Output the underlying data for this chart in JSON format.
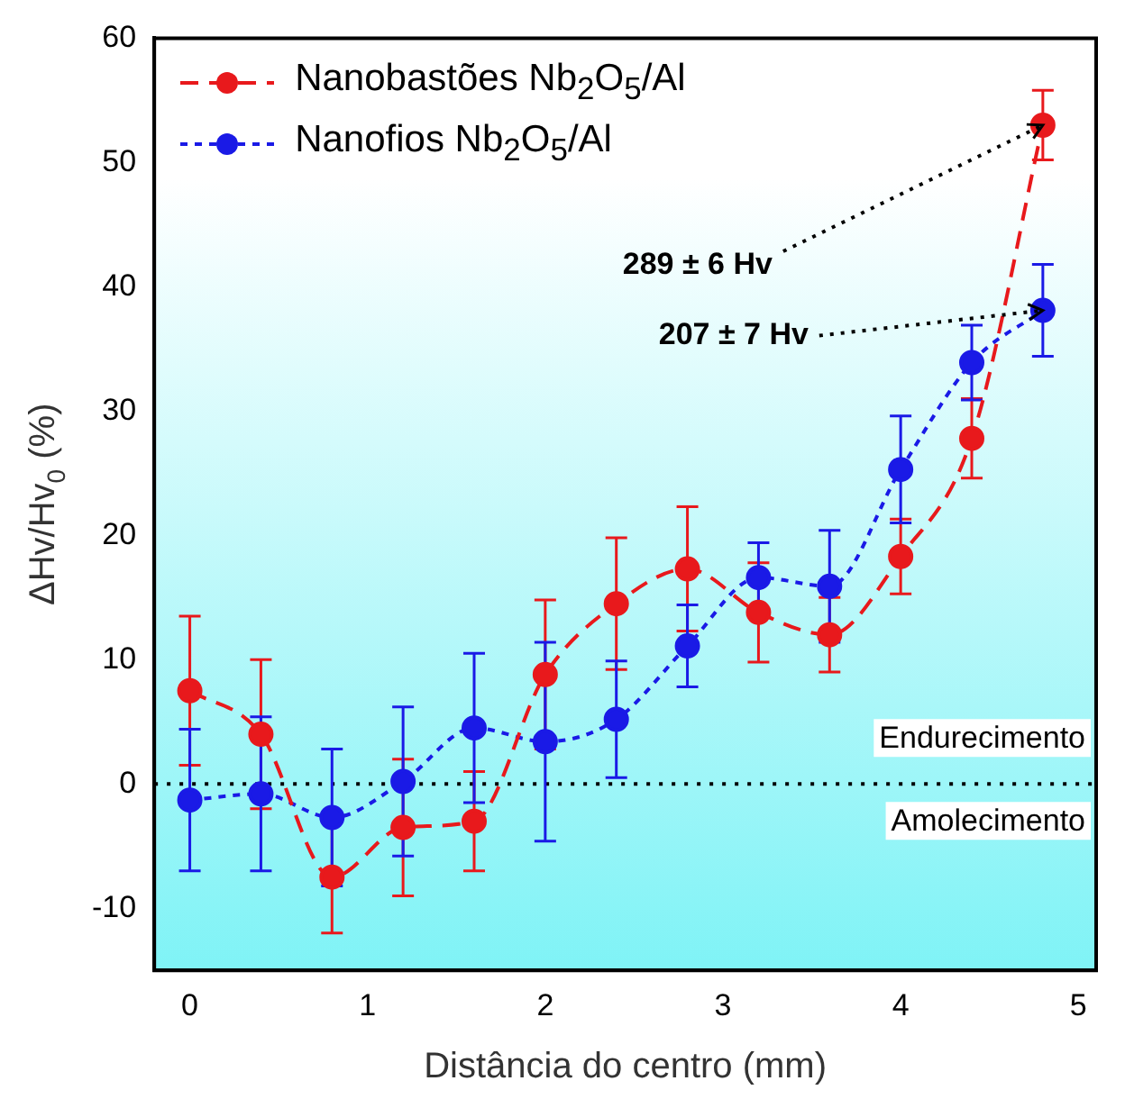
{
  "chart_data": {
    "type": "line",
    "xlabel": "Distância do centro (mm)",
    "ylabel": "ΔHv/Hv$_{0}$ (%)",
    "x": [
      0,
      0.4,
      0.8,
      1.2,
      1.6,
      2,
      2.4,
      2.8,
      3.2,
      3.6,
      4,
      4.4,
      4.8
    ],
    "series": [
      {
        "name": "Nanobastões  Nb$_{2}$O$_{5}$/Al",
        "color": "#e8191c",
        "line_style": "dashed",
        "values": [
          7.5,
          4,
          -7.5,
          -3.5,
          -3,
          8.8,
          14.5,
          17.3,
          13.8,
          12,
          18.3,
          27.8,
          53
        ],
        "errors": [
          6,
          6,
          4.5,
          5.5,
          4,
          6,
          5.3,
          5,
          4,
          3,
          3,
          3.2,
          2.8
        ]
      },
      {
        "name": "Nanofios  Nb$_{2}$O$_{5}$/Al",
        "color": "#1a1ae6",
        "line_style": "dotted",
        "values": [
          -1.3,
          -0.8,
          -2.7,
          0.2,
          4.5,
          3.4,
          5.2,
          11.1,
          16.6,
          15.9,
          25.3,
          33.9,
          38.1
        ],
        "errors": [
          5.7,
          6.2,
          5.5,
          6,
          6,
          8,
          4.7,
          3.3,
          2.8,
          4.5,
          4.3,
          3,
          3.7
        ]
      }
    ],
    "marker": "circle",
    "xlim": [
      -0.2,
      5.1
    ],
    "xticks": [
      0,
      1,
      2,
      3,
      4,
      5
    ],
    "ylim": [
      -15,
      60
    ],
    "yticks": [
      -10,
      0,
      10,
      20,
      30,
      40,
      50,
      60
    ],
    "grid": false,
    "legend": "top left",
    "ref_lines": [
      {
        "axis": "y",
        "value": 0,
        "line_style": "dotted",
        "color": "#000000"
      }
    ],
    "annotations": [
      {
        "text": "289 ± 6 Hv",
        "x": 4.8,
        "y": 53
      },
      {
        "text": "207 ± 7 Hv",
        "x": 4.8,
        "y": 38.1
      },
      "Endurecimento",
      "Amolecimento"
    ]
  }
}
